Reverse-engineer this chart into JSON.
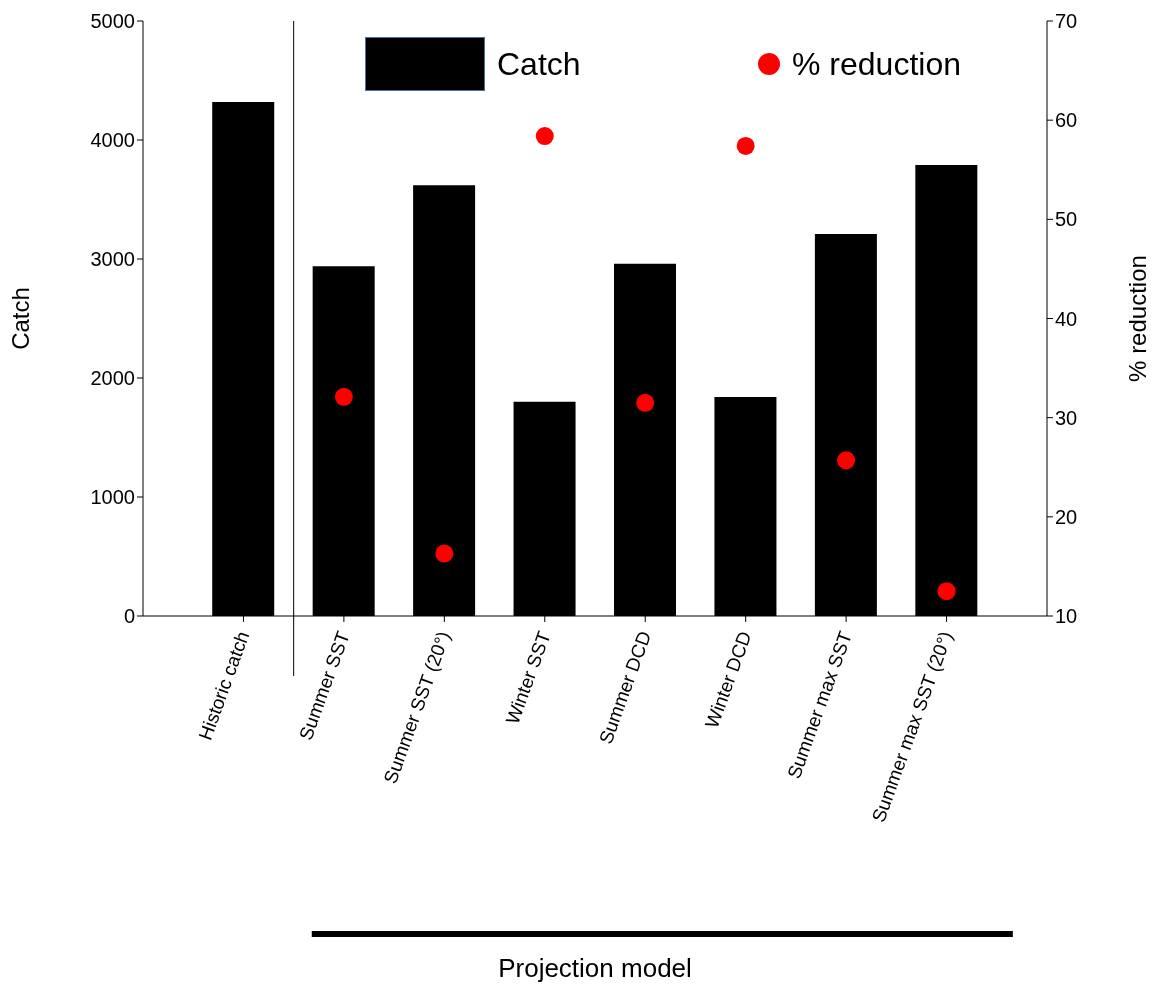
{
  "chart_data": {
    "type": "bar",
    "xlabel": "Projection model",
    "ylabel": "Catch",
    "y2label": "% reduction",
    "categories": [
      "Historic catch",
      "Summer SST",
      "Summer SST (20°)",
      "Winter SST",
      "Summer DCD",
      "Winter DCD",
      "Summer max SST",
      "Summer max SST (20°)"
    ],
    "series": [
      {
        "name": "Catch",
        "color": "#000000",
        "values": [
          4320,
          2940,
          3620,
          1800,
          2960,
          1840,
          3210,
          3790
        ]
      },
      {
        "name": "% reduction",
        "type": "scatter",
        "axis": "y2",
        "color": "#ff0000",
        "values": [
          null,
          32.1,
          16.3,
          58.4,
          31.5,
          57.4,
          25.7,
          12.5
        ]
      }
    ],
    "ylim": [
      0,
      5000
    ],
    "yticks": [
      0,
      1000,
      2000,
      3000,
      4000,
      5000
    ],
    "y2lim": [
      10,
      70
    ],
    "y2ticks": [
      10,
      20,
      30,
      40,
      50,
      60,
      70
    ],
    "legend": "top",
    "marker": "circle",
    "grid": false
  }
}
